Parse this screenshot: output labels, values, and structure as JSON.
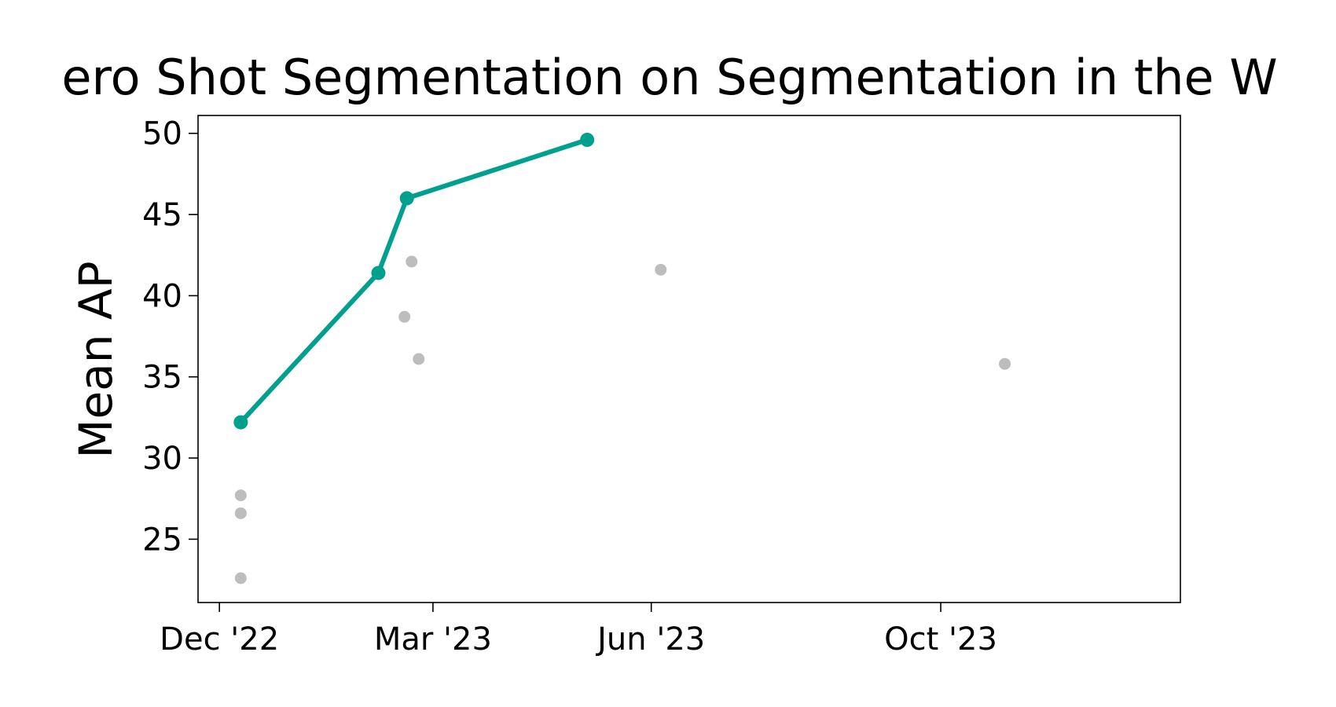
{
  "chart_data": {
    "type": "scatter",
    "title": "Zero Shot Segmentation on Segmentation in the Wild",
    "title_visible_text": "ero Shot Segmentation on Segmentation in the W",
    "xlabel": "",
    "ylabel": "Mean AP",
    "x_axis_type": "date",
    "xlim": [
      "2022-11-22",
      "2024-01-10"
    ],
    "ylim": [
      21.1,
      51.1
    ],
    "x_ticks": [
      {
        "date": "2022-12-01",
        "label": "Dec '22"
      },
      {
        "date": "2023-03-01",
        "label": "Mar '23"
      },
      {
        "date": "2023-06-01",
        "label": "Jun '23"
      },
      {
        "date": "2023-10-01",
        "label": "Oct '23"
      }
    ],
    "y_ticks": [
      25,
      30,
      35,
      40,
      45,
      50
    ],
    "grid": false,
    "series": [
      {
        "role": "best",
        "color": "#00a08e",
        "line": true,
        "points": [
          {
            "x": "2022-12-10",
            "y": 32.2
          },
          {
            "x": "2023-02-06",
            "y": 41.4
          },
          {
            "x": "2023-02-18",
            "y": 46.0
          },
          {
            "x": "2023-05-05",
            "y": 49.6
          }
        ]
      },
      {
        "role": "other",
        "color": "#bdbdbd",
        "line": false,
        "points": [
          {
            "x": "2022-12-10",
            "y": 27.7
          },
          {
            "x": "2022-12-10",
            "y": 26.6
          },
          {
            "x": "2022-12-10",
            "y": 22.6
          },
          {
            "x": "2023-02-17",
            "y": 38.7
          },
          {
            "x": "2023-02-20",
            "y": 42.1
          },
          {
            "x": "2023-02-23",
            "y": 36.1
          },
          {
            "x": "2023-06-05",
            "y": 41.6
          },
          {
            "x": "2023-10-28",
            "y": 35.8
          }
        ]
      }
    ]
  }
}
